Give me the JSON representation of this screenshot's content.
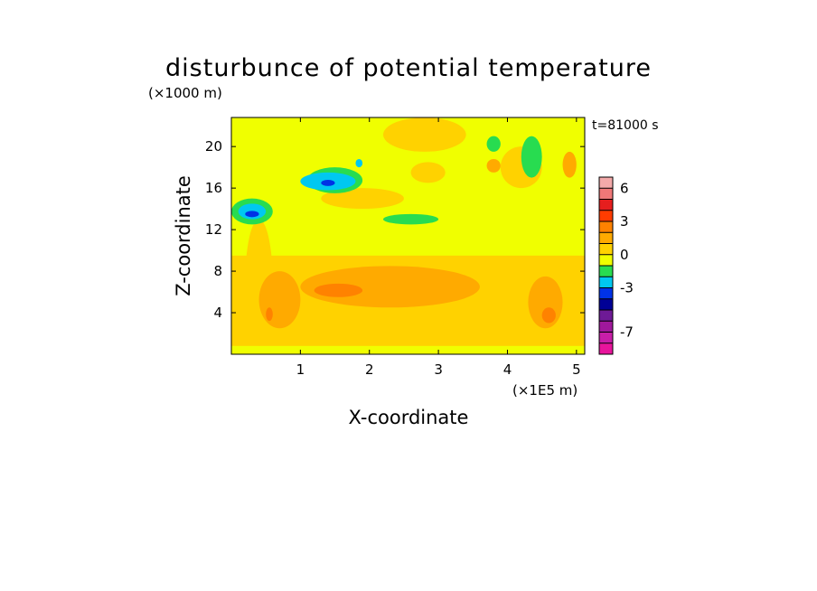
{
  "chart_data": {
    "type": "heatmap",
    "title": "disturbunce of potential temperature",
    "time_label": "t=81000 s",
    "xlabel": "X-coordinate",
    "ylabel": "Z-coordinate",
    "x_unit": "(×1E5 m)",
    "y_unit": "(×1000 m)",
    "xlim": [
      0,
      5.12
    ],
    "ylim": [
      0,
      22.8
    ],
    "x_ticks": [
      1,
      2,
      3,
      4,
      5
    ],
    "y_ticks": [
      4,
      8,
      12,
      16,
      20
    ],
    "colorbar": {
      "levels": [
        -9,
        -8,
        -7,
        -6,
        -5,
        -4,
        -3,
        -2,
        -1,
        0,
        1,
        2,
        3,
        4,
        5,
        6,
        7
      ],
      "colors": [
        "#e8149c",
        "#c81ea8",
        "#a0189c",
        "#6e1a96",
        "#000096",
        "#0032e6",
        "#00c8f0",
        "#28dc50",
        "#f0ff00",
        "#ffd200",
        "#ffaa00",
        "#ff8200",
        "#ff3c00",
        "#e61e1e",
        "#f07878",
        "#f4aaaa"
      ],
      "tick_labels": [
        "6",
        "3",
        "0",
        "-3",
        "-7"
      ],
      "tick_values": [
        6,
        3,
        0,
        -3,
        -7
      ]
    },
    "regions": [
      {
        "v": 0.5,
        "x0": 0,
        "x1": 5.12,
        "y0": 0,
        "y1": 22.8
      },
      {
        "v": -0.5,
        "x0": 0,
        "x1": 5.12,
        "y0": 9.5,
        "y1": 22.8
      },
      {
        "v": -0.5,
        "x0": 0,
        "x1": 5.12,
        "y0": 0,
        "y1": 0.8
      },
      {
        "v": 0.5,
        "x0": 2.2,
        "x1": 3.4,
        "y0": 19.5,
        "y1": 22.8
      },
      {
        "v": 0.5,
        "x0": 3.9,
        "x1": 4.5,
        "y0": 16,
        "y1": 20
      },
      {
        "v": 0.5,
        "x0": 1.3,
        "x1": 2.5,
        "y0": 14,
        "y1": 16
      },
      {
        "v": 0.5,
        "x0": 2.6,
        "x1": 3.1,
        "y0": 16.5,
        "y1": 18.5
      },
      {
        "v": 0.5,
        "x0": 0.2,
        "x1": 0.6,
        "y0": 0.8,
        "y1": 13
      },
      {
        "v": 1.5,
        "x0": 1,
        "x1": 3.6,
        "y0": 4.5,
        "y1": 8.5
      },
      {
        "v": 1.5,
        "x0": 4.3,
        "x1": 4.8,
        "y0": 2.5,
        "y1": 7.5
      },
      {
        "v": 1.5,
        "x0": 0.4,
        "x1": 1,
        "y0": 2.5,
        "y1": 8
      },
      {
        "v": 2.5,
        "x0": 1.2,
        "x1": 1.9,
        "y0": 5.5,
        "y1": 6.8
      },
      {
        "v": 2.5,
        "x0": 0.5,
        "x1": 0.6,
        "y0": 3.2,
        "y1": 4.5
      },
      {
        "v": 2.5,
        "x0": 4.5,
        "x1": 4.7,
        "y0": 3,
        "y1": 4.5
      },
      {
        "v": -1.5,
        "x0": 1.1,
        "x1": 1.9,
        "y0": 15.5,
        "y1": 18
      },
      {
        "v": -1.5,
        "x0": 2.2,
        "x1": 3,
        "y0": 12.5,
        "y1": 13.5
      },
      {
        "v": -1.5,
        "x0": 0,
        "x1": 0.6,
        "y0": 12.5,
        "y1": 15
      },
      {
        "v": -1.5,
        "x0": 4.2,
        "x1": 4.5,
        "y0": 17,
        "y1": 21
      },
      {
        "v": -1.5,
        "x0": 3.7,
        "x1": 3.9,
        "y0": 19.5,
        "y1": 21
      },
      {
        "v": -2.5,
        "x0": 1,
        "x1": 1.8,
        "y0": 15.8,
        "y1": 17.5
      },
      {
        "v": -2.5,
        "x0": 0.1,
        "x1": 0.5,
        "y0": 13,
        "y1": 14.5
      },
      {
        "v": -2.5,
        "x0": 1.8,
        "x1": 1.9,
        "y0": 18,
        "y1": 18.8
      },
      {
        "v": -3.5,
        "x0": 1.3,
        "x1": 1.5,
        "y0": 16.2,
        "y1": 16.8
      },
      {
        "v": -3.5,
        "x0": 0.2,
        "x1": 0.4,
        "y0": 13.2,
        "y1": 13.8
      },
      {
        "v": 1.5,
        "x0": 3.7,
        "x1": 3.9,
        "y0": 17.5,
        "y1": 18.8
      },
      {
        "v": 1.5,
        "x0": 4.8,
        "x1": 5,
        "y0": 17,
        "y1": 19.5
      }
    ]
  }
}
